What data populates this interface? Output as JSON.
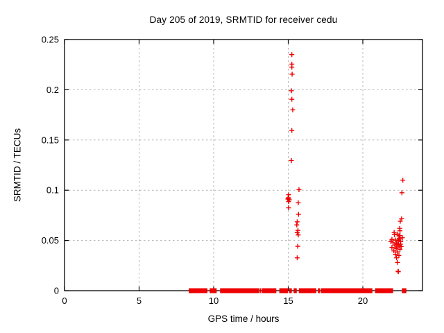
{
  "window": {
    "background": "#ffffff"
  },
  "chart_data": {
    "type": "scatter",
    "title": "Day 205 of 2019, SRMTID for receiver cedu",
    "xlabel": "GPS time / hours",
    "ylabel": "SRMTID / TECUs",
    "xlim": [
      0,
      24
    ],
    "ylim": [
      0,
      0.25
    ],
    "xticks": [
      0,
      5,
      10,
      15,
      20
    ],
    "yticks": [
      0,
      0.05,
      0.1,
      0.15,
      0.2,
      0.25
    ],
    "ytick_labels": [
      "0",
      "0.05",
      "0.1",
      "0.15",
      "0.2",
      "0.25"
    ],
    "xtick_labels": [
      "0",
      "5",
      "10",
      "15",
      "20"
    ],
    "grid": true,
    "legend": "none",
    "marker": "plus",
    "marker_color": "#ee0000",
    "grid_color": "#b0b0b0",
    "axis_color": "#000000",
    "series": [
      {
        "name": "SRMTID",
        "points": [
          [
            15.24,
            0.235
          ],
          [
            15.24,
            0.2255
          ],
          [
            15.24,
            0.2225
          ],
          [
            15.26,
            0.2155
          ],
          [
            15.21,
            0.199
          ],
          [
            15.24,
            0.1905
          ],
          [
            15.3,
            0.18
          ],
          [
            15.24,
            0.1595
          ],
          [
            15.21,
            0.1295
          ],
          [
            15.02,
            0.0955
          ],
          [
            15.0,
            0.0925
          ],
          [
            15.04,
            0.092
          ],
          [
            14.97,
            0.0912
          ],
          [
            15.07,
            0.0905
          ],
          [
            15.02,
            0.0887
          ],
          [
            15.02,
            0.0825
          ],
          [
            15.72,
            0.1005
          ],
          [
            15.67,
            0.0875
          ],
          [
            15.69,
            0.076
          ],
          [
            15.6,
            0.0685
          ],
          [
            15.57,
            0.0655
          ],
          [
            15.65,
            0.06
          ],
          [
            15.6,
            0.0578
          ],
          [
            15.67,
            0.0555
          ],
          [
            15.64,
            0.0442
          ],
          [
            15.6,
            0.0327
          ],
          [
            22.68,
            0.11
          ],
          [
            22.62,
            0.0975
          ],
          [
            22.6,
            0.0716
          ],
          [
            22.51,
            0.0691
          ],
          [
            22.47,
            0.062
          ],
          [
            22.12,
            0.0557
          ],
          [
            22.49,
            0.0548
          ],
          [
            22.65,
            0.0527
          ],
          [
            22.49,
            0.0596
          ],
          [
            22.1,
            0.058
          ],
          [
            22.33,
            0.0564
          ],
          [
            22.42,
            0.0546
          ],
          [
            21.95,
            0.0511
          ],
          [
            22.19,
            0.0504
          ],
          [
            22.39,
            0.0499
          ],
          [
            21.88,
            0.0488
          ],
          [
            22.54,
            0.0488
          ],
          [
            22.03,
            0.0477
          ],
          [
            22.26,
            0.0472
          ],
          [
            22.14,
            0.0454
          ],
          [
            22.42,
            0.0449
          ],
          [
            21.95,
            0.043
          ],
          [
            22.23,
            0.0419
          ],
          [
            22.49,
            0.0412
          ],
          [
            22.08,
            0.0396
          ],
          [
            22.33,
            0.0385
          ],
          [
            22.19,
            0.0361
          ],
          [
            22.42,
            0.035
          ],
          [
            22.26,
            0.0327
          ],
          [
            22.45,
            0.052
          ],
          [
            22.36,
            0.0505
          ],
          [
            22.3,
            0.046
          ],
          [
            22.52,
            0.0462
          ],
          [
            22.28,
            0.0435
          ],
          [
            22.57,
            0.044
          ],
          [
            22.33,
            0.0281
          ],
          [
            22.36,
            0.0193
          ],
          [
            22.38,
            0.0189
          ]
        ]
      }
    ],
    "baseline_value": 0,
    "baseline_segments": [
      [
        8.33,
        9.58
      ],
      [
        9.73,
        10.2
      ],
      [
        10.43,
        13.04
      ],
      [
        13.08,
        13.12
      ],
      [
        13.22,
        14.2
      ],
      [
        14.4,
        14.98
      ],
      [
        15.05,
        15.24
      ],
      [
        15.36,
        15.57
      ],
      [
        15.71,
        16.88
      ],
      [
        16.99,
        17.15
      ],
      [
        17.21,
        20.64
      ],
      [
        20.82,
        22.03
      ],
      [
        22.62,
        22.92
      ]
    ]
  }
}
